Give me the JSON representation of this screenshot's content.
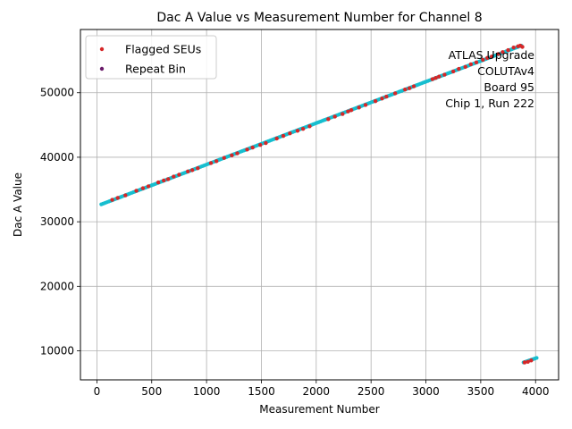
{
  "chart_data": {
    "type": "scatter",
    "title": "Dac A Value vs Measurement Number for Channel 8",
    "xlabel": "Measurement Number",
    "ylabel": "Dac A Value",
    "xlim": [
      -150,
      4210
    ],
    "ylim": [
      5500,
      59800
    ],
    "xticks": [
      0,
      500,
      1000,
      1500,
      2000,
      2500,
      3000,
      3500,
      4000
    ],
    "yticks": [
      10000,
      20000,
      30000,
      40000,
      50000
    ],
    "grid": true,
    "legend_position": "top-left",
    "annotation": [
      "ATLAS Upgrade",
      "COLUTAv4",
      "Board 95",
      "Chip 1, Run 222"
    ],
    "colors": {
      "base": "#17becf",
      "flagged": "#d62728",
      "repeat": "#6a1b6a",
      "grid": "#b0b0b0"
    },
    "series": [
      {
        "name": "",
        "color": "#17becf",
        "segments": [
          {
            "x": [
              40,
              3870
            ],
            "y": [
              32700,
              57300
            ]
          },
          {
            "x": [
              3890,
              4010
            ],
            "y": [
              8200,
              8900
            ]
          }
        ]
      },
      {
        "name": "Flagged SEUs",
        "color": "#d62728",
        "x": [
          140,
          190,
          260,
          360,
          420,
          470,
          560,
          610,
          650,
          700,
          750,
          830,
          870,
          920,
          1040,
          1090,
          1160,
          1230,
          1280,
          1370,
          1420,
          1490,
          1540,
          1640,
          1700,
          1760,
          1830,
          1880,
          1940,
          2110,
          2170,
          2240,
          2290,
          2320,
          2390,
          2450,
          2540,
          2600,
          2640,
          2720,
          2810,
          2850,
          2890,
          3060,
          3090,
          3120,
          3170,
          3250,
          3300,
          3360,
          3410,
          3460,
          3520,
          3560,
          3600,
          3660,
          3700,
          3750,
          3800,
          3840,
          3860,
          3880,
          3900,
          3930,
          3960
        ],
        "y": [
          33400,
          33700,
          34100,
          34800,
          35200,
          35500,
          36100,
          36400,
          36600,
          37000,
          37300,
          37800,
          38000,
          38300,
          39100,
          39400,
          39900,
          40300,
          40600,
          41200,
          41500,
          41900,
          42200,
          42900,
          43300,
          43700,
          44100,
          44400,
          44800,
          45900,
          46300,
          46700,
          47100,
          47300,
          47700,
          48100,
          48700,
          49100,
          49400,
          49900,
          50500,
          50700,
          51000,
          52100,
          52300,
          52500,
          52800,
          53300,
          53700,
          54000,
          54400,
          54700,
          55100,
          55400,
          55600,
          56000,
          56300,
          56600,
          57000,
          57200,
          57300,
          57100,
          8200,
          8300,
          8500
        ]
      },
      {
        "name": "Repeat Bin",
        "color": "#6a1b6a",
        "x": [],
        "y": []
      }
    ]
  }
}
